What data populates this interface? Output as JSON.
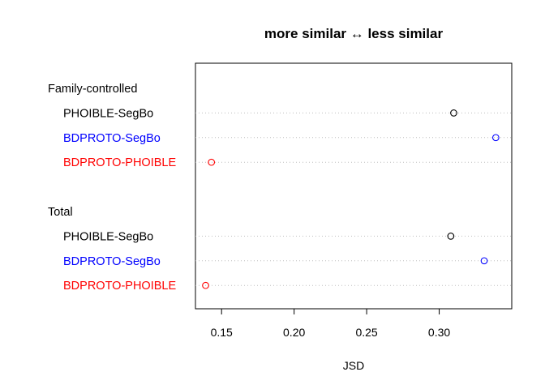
{
  "chart_data": {
    "type": "scatter",
    "subtype": "dotchart",
    "title": "more similar ↔ less similar",
    "xlabel": "JSD",
    "ylabel": "",
    "xlim": [
      0.132,
      0.35
    ],
    "xticks": [
      0.15,
      0.2,
      0.25,
      0.3
    ],
    "xtick_labels": [
      "0.15",
      "0.20",
      "0.25",
      "0.30"
    ],
    "grid": "dotted horizontal guide per row",
    "marker": "open circle",
    "groups": [
      {
        "name": "Family-controlled",
        "rows": [
          {
            "label": "PHOIBLE-SegBo",
            "value": 0.31,
            "color": "#000000"
          },
          {
            "label": "BDPROTO-SegBo",
            "value": 0.339,
            "color": "#0000ff"
          },
          {
            "label": "BDPROTO-PHOIBLE",
            "value": 0.143,
            "color": "#ff0000"
          }
        ]
      },
      {
        "name": "Total",
        "rows": [
          {
            "label": "PHOIBLE-SegBo",
            "value": 0.308,
            "color": "#000000"
          },
          {
            "label": "BDPROTO-SegBo",
            "value": 0.331,
            "color": "#0000ff"
          },
          {
            "label": "BDPROTO-PHOIBLE",
            "value": 0.139,
            "color": "#ff0000"
          }
        ]
      }
    ]
  }
}
